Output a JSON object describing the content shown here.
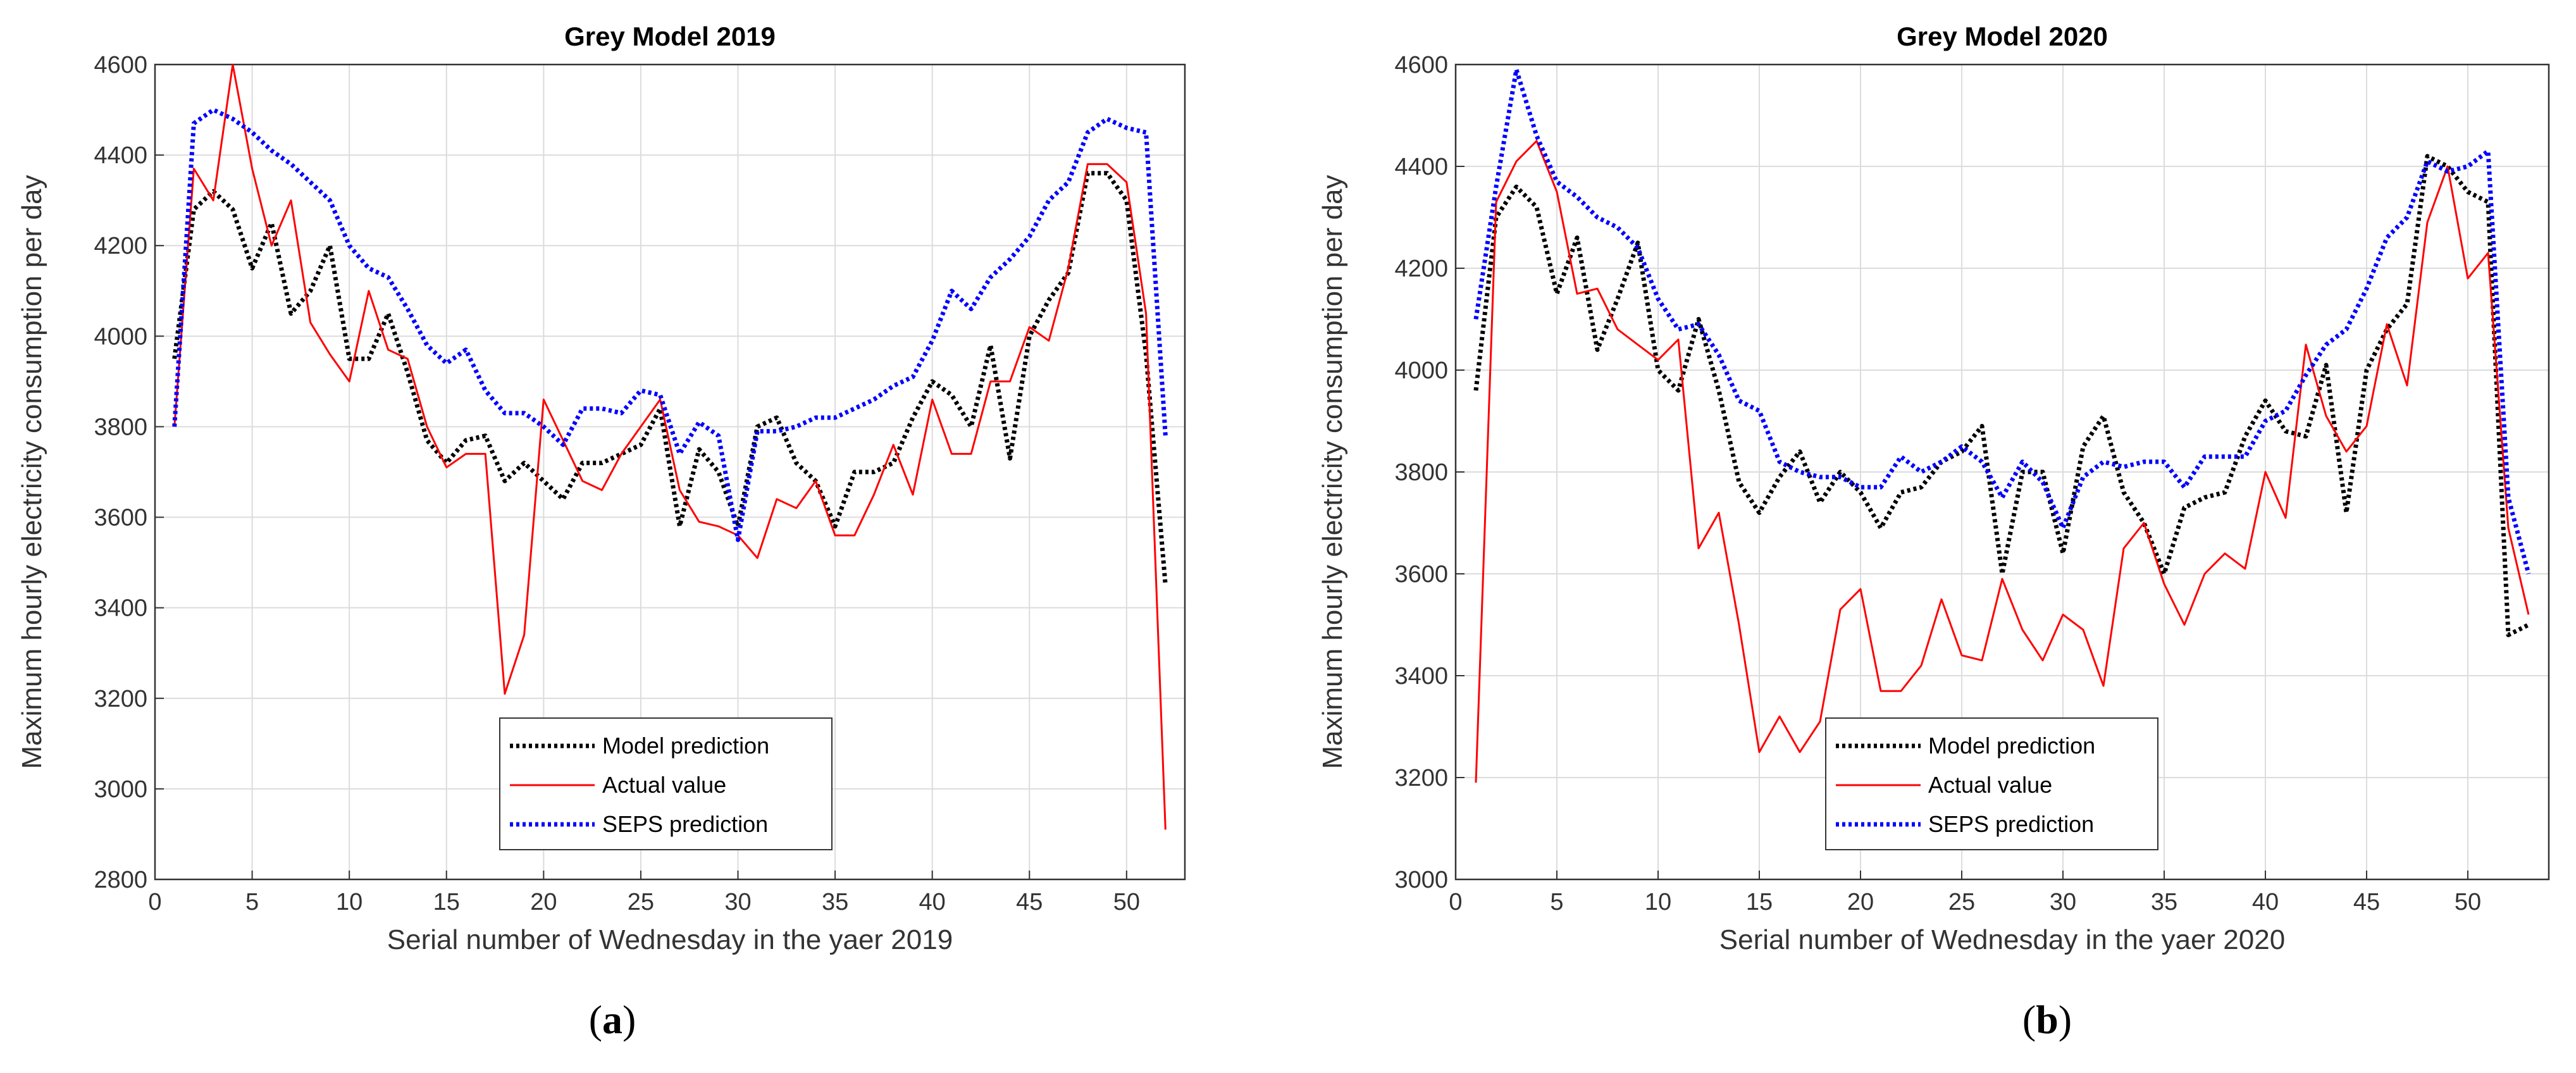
{
  "panels": [
    {
      "sublabel_open": "(",
      "sublabel_letter": "a",
      "sublabel_close": ")"
    },
    {
      "sublabel_open": "(",
      "sublabel_letter": "b",
      "sublabel_close": ")"
    }
  ],
  "chart_data": [
    {
      "type": "line",
      "title": "Grey Model 2019",
      "xlabel": "Serial number of Wednesday in the yaer 2019",
      "ylabel": "Maximum hourly electricity consumption per day",
      "xlim": [
        0,
        53
      ],
      "ylim": [
        2800,
        4600
      ],
      "xticks": [
        0,
        5,
        10,
        15,
        20,
        25,
        30,
        35,
        40,
        45,
        50
      ],
      "yticks": [
        2800,
        3000,
        3200,
        3400,
        3600,
        3800,
        4000,
        4200,
        4400,
        4600
      ],
      "grid": true,
      "legend_position": "bottom-center",
      "series": [
        {
          "name": "Model prediction",
          "color": "#000000",
          "style": "dotted",
          "x": [
            1,
            2,
            3,
            4,
            5,
            6,
            7,
            8,
            9,
            10,
            11,
            12,
            13,
            14,
            15,
            16,
            17,
            18,
            19,
            20,
            21,
            22,
            23,
            24,
            25,
            26,
            27,
            28,
            29,
            30,
            31,
            32,
            33,
            34,
            35,
            36,
            37,
            38,
            39,
            40,
            41,
            42,
            43,
            44,
            45,
            46,
            47,
            48,
            49,
            50,
            51,
            52
          ],
          "values": [
            3950,
            4280,
            4320,
            4280,
            4150,
            4250,
            4050,
            4100,
            4200,
            3950,
            3950,
            4050,
            3920,
            3770,
            3720,
            3770,
            3780,
            3680,
            3720,
            3680,
            3640,
            3720,
            3720,
            3740,
            3760,
            3840,
            3580,
            3750,
            3700,
            3580,
            3800,
            3820,
            3720,
            3680,
            3580,
            3700,
            3700,
            3720,
            3820,
            3900,
            3870,
            3800,
            3980,
            3730,
            4000,
            4080,
            4140,
            4360,
            4360,
            4300,
            3960,
            3450
          ]
        },
        {
          "name": "Actual value",
          "color": "#ff0000",
          "style": "solid",
          "x": [
            1,
            2,
            3,
            4,
            5,
            6,
            7,
            8,
            9,
            10,
            11,
            12,
            13,
            14,
            15,
            16,
            17,
            18,
            19,
            20,
            21,
            22,
            23,
            24,
            25,
            26,
            27,
            28,
            29,
            30,
            31,
            32,
            33,
            34,
            35,
            36,
            37,
            38,
            39,
            40,
            41,
            42,
            43,
            44,
            45,
            46,
            47,
            48,
            49,
            50,
            51,
            52
          ],
          "values": [
            3800,
            4370,
            4300,
            4600,
            4370,
            4200,
            4300,
            4030,
            3960,
            3900,
            4100,
            3970,
            3950,
            3800,
            3710,
            3740,
            3740,
            3210,
            3340,
            3860,
            3770,
            3680,
            3660,
            3740,
            3800,
            3860,
            3660,
            3590,
            3580,
            3560,
            3510,
            3640,
            3620,
            3680,
            3560,
            3560,
            3650,
            3760,
            3650,
            3860,
            3740,
            3740,
            3900,
            3900,
            4020,
            3990,
            4150,
            4380,
            4380,
            4340,
            4050,
            2910
          ]
        },
        {
          "name": "SEPS prediction",
          "color": "#0000ff",
          "style": "dotted",
          "x": [
            1,
            2,
            3,
            4,
            5,
            6,
            7,
            8,
            9,
            10,
            11,
            12,
            13,
            14,
            15,
            16,
            17,
            18,
            19,
            20,
            21,
            22,
            23,
            24,
            25,
            26,
            27,
            28,
            29,
            30,
            31,
            32,
            33,
            34,
            35,
            36,
            37,
            38,
            39,
            40,
            41,
            42,
            43,
            44,
            45,
            46,
            47,
            48,
            49,
            50,
            51,
            52
          ],
          "values": [
            3800,
            4470,
            4500,
            4480,
            4450,
            4410,
            4380,
            4340,
            4300,
            4200,
            4150,
            4130,
            4060,
            3980,
            3940,
            3970,
            3880,
            3830,
            3830,
            3800,
            3760,
            3840,
            3840,
            3830,
            3880,
            3870,
            3740,
            3810,
            3780,
            3550,
            3790,
            3790,
            3800,
            3820,
            3820,
            3840,
            3860,
            3890,
            3910,
            3990,
            4100,
            4060,
            4130,
            4170,
            4220,
            4300,
            4340,
            4450,
            4480,
            4460,
            4450,
            3780
          ]
        }
      ]
    },
    {
      "type": "line",
      "title": "Grey Model 2020",
      "xlabel": "Serial number of Wednesday in the yaer 2020",
      "ylabel": "Maximum hourly electricity consumption per day",
      "xlim": [
        0,
        54
      ],
      "ylim": [
        3000,
        4600
      ],
      "xticks": [
        0,
        5,
        10,
        15,
        20,
        25,
        30,
        35,
        40,
        45,
        50
      ],
      "yticks": [
        3000,
        3200,
        3400,
        3600,
        3800,
        4000,
        4200,
        4400,
        4600
      ],
      "grid": true,
      "legend_position": "bottom-center",
      "series": [
        {
          "name": "Model prediction",
          "color": "#000000",
          "style": "dotted",
          "x": [
            1,
            2,
            3,
            4,
            5,
            6,
            7,
            8,
            9,
            10,
            11,
            12,
            13,
            14,
            15,
            16,
            17,
            18,
            19,
            20,
            21,
            22,
            23,
            24,
            25,
            26,
            27,
            28,
            29,
            30,
            31,
            32,
            33,
            34,
            35,
            36,
            37,
            38,
            39,
            40,
            41,
            42,
            43,
            44,
            45,
            46,
            47,
            48,
            49,
            50,
            51,
            52,
            53
          ],
          "values": [
            3960,
            4300,
            4360,
            4320,
            4150,
            4260,
            4040,
            4140,
            4250,
            4000,
            3960,
            4100,
            3960,
            3780,
            3720,
            3790,
            3840,
            3740,
            3800,
            3760,
            3690,
            3760,
            3770,
            3820,
            3840,
            3890,
            3600,
            3800,
            3800,
            3640,
            3850,
            3910,
            3760,
            3700,
            3600,
            3730,
            3750,
            3760,
            3870,
            3940,
            3880,
            3870,
            4010,
            3720,
            4000,
            4080,
            4130,
            4420,
            4400,
            4350,
            4330,
            3480,
            3500
          ]
        },
        {
          "name": "Actual value",
          "color": "#ff0000",
          "style": "solid",
          "x": [
            1,
            2,
            3,
            4,
            5,
            6,
            7,
            8,
            9,
            10,
            11,
            12,
            13,
            14,
            15,
            16,
            17,
            18,
            19,
            20,
            21,
            22,
            23,
            24,
            25,
            26,
            27,
            28,
            29,
            30,
            31,
            32,
            33,
            34,
            35,
            36,
            37,
            38,
            39,
            40,
            41,
            42,
            43,
            44,
            45,
            46,
            47,
            48,
            49,
            50,
            51,
            52,
            53
          ],
          "values": [
            3190,
            4330,
            4410,
            4450,
            4350,
            4150,
            4160,
            4080,
            4050,
            4020,
            4060,
            3650,
            3720,
            3500,
            3250,
            3320,
            3250,
            3310,
            3530,
            3570,
            3370,
            3370,
            3420,
            3550,
            3440,
            3430,
            3590,
            3490,
            3430,
            3520,
            3490,
            3380,
            3650,
            3700,
            3580,
            3500,
            3600,
            3640,
            3610,
            3800,
            3710,
            4050,
            3910,
            3840,
            3890,
            4090,
            3970,
            4290,
            4400,
            4180,
            4230,
            3690,
            3520
          ]
        },
        {
          "name": "SEPS prediction",
          "color": "#0000ff",
          "style": "dotted",
          "x": [
            1,
            2,
            3,
            4,
            5,
            6,
            7,
            8,
            9,
            10,
            11,
            12,
            13,
            14,
            15,
            16,
            17,
            18,
            19,
            20,
            21,
            22,
            23,
            24,
            25,
            26,
            27,
            28,
            29,
            30,
            31,
            32,
            33,
            34,
            35,
            36,
            37,
            38,
            39,
            40,
            41,
            42,
            43,
            44,
            45,
            46,
            47,
            48,
            49,
            50,
            51,
            52,
            53
          ],
          "values": [
            4100,
            4360,
            4590,
            4460,
            4370,
            4340,
            4300,
            4280,
            4240,
            4140,
            4080,
            4090,
            4030,
            3940,
            3920,
            3820,
            3800,
            3790,
            3790,
            3770,
            3770,
            3830,
            3800,
            3820,
            3850,
            3820,
            3750,
            3820,
            3780,
            3690,
            3790,
            3820,
            3810,
            3820,
            3820,
            3770,
            3830,
            3830,
            3830,
            3900,
            3920,
            3990,
            4050,
            4080,
            4160,
            4260,
            4300,
            4410,
            4390,
            4400,
            4430,
            3750,
            3600
          ]
        }
      ]
    }
  ]
}
